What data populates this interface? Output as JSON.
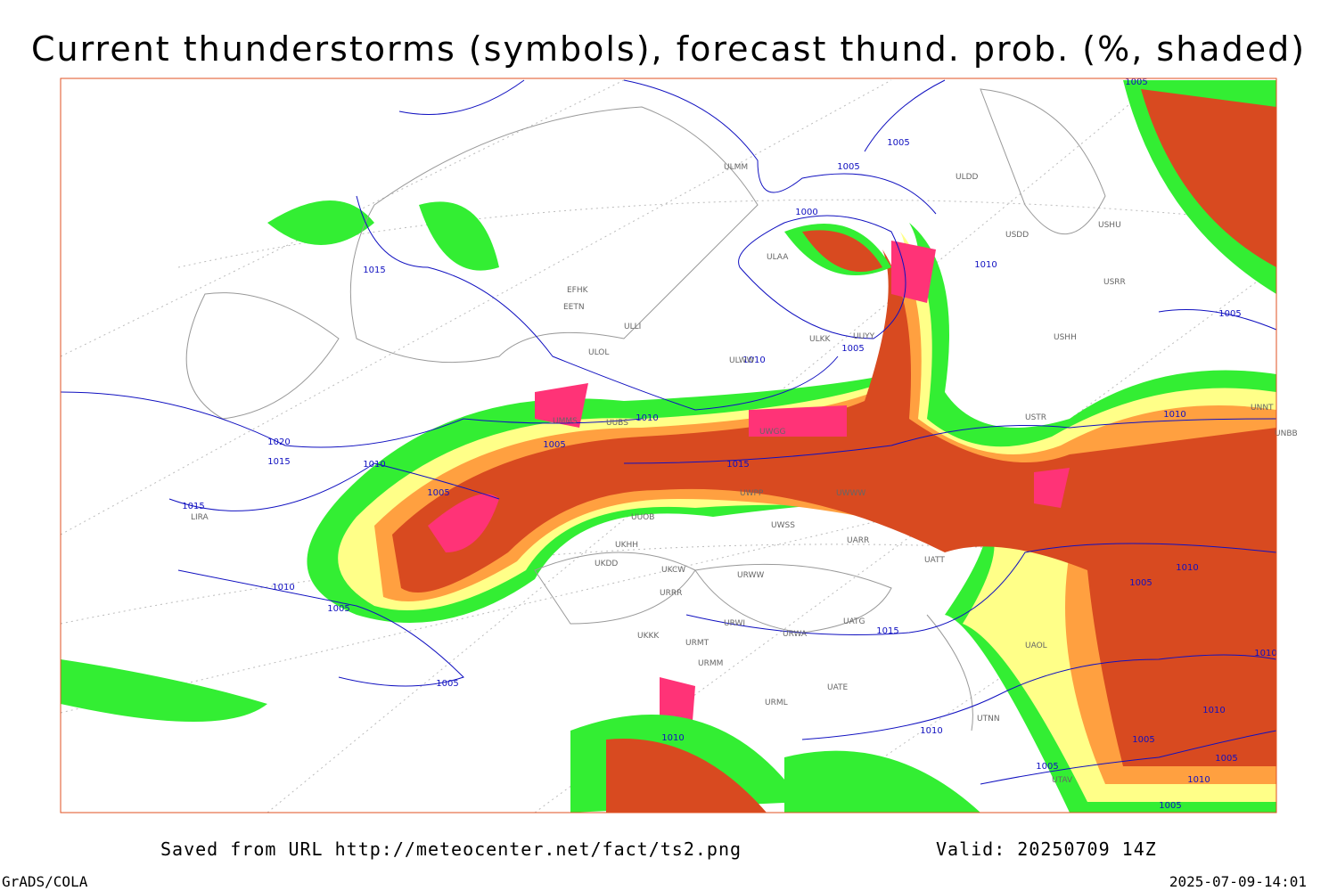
{
  "header": {
    "title": "Current thunderstorms (symbols), forecast thund. prob. (%, shaded)"
  },
  "map": {
    "isobar_labels": [
      1005,
      1005,
      1005,
      1000,
      1015,
      1010,
      1005,
      1005,
      1010,
      1010,
      1010,
      1020,
      1015,
      1010,
      1005,
      1005,
      1015,
      1015,
      1010,
      1005,
      1010,
      1005,
      1015,
      1010,
      1005,
      1010,
      1010,
      1010,
      1005,
      1005,
      1005,
      1010,
      1005
    ],
    "station_labels": [
      "ULMM",
      "ULDD",
      "ULAA",
      "USDD",
      "USHU",
      "EFHK",
      "EETN",
      "ULLI",
      "USRR",
      "UUYY",
      "ULKK",
      "USHH",
      "ULOL",
      "ULWW",
      "USTR",
      "UNNT",
      "UNBB",
      "UWGG",
      "UMMS",
      "UUBS",
      "UUOB",
      "UWPP",
      "UWWW",
      "UWSS",
      "UARR",
      "UKHH",
      "UKDD",
      "UKCW",
      "URWW",
      "UATT",
      "URRR",
      "URWI",
      "UATG",
      "URWA",
      "URMT",
      "UKKK",
      "URMM",
      "UAOL",
      "URML",
      "UATE",
      "UTNN",
      "UTAV",
      "LIRA"
    ]
  },
  "footer": {
    "source": "Saved from URL http://meteocenter.net/fact/ts2.png",
    "valid": "Valid: 20250709 14Z",
    "software": "GrADS/COLA",
    "timestamp": "2025-07-09-14:01"
  }
}
